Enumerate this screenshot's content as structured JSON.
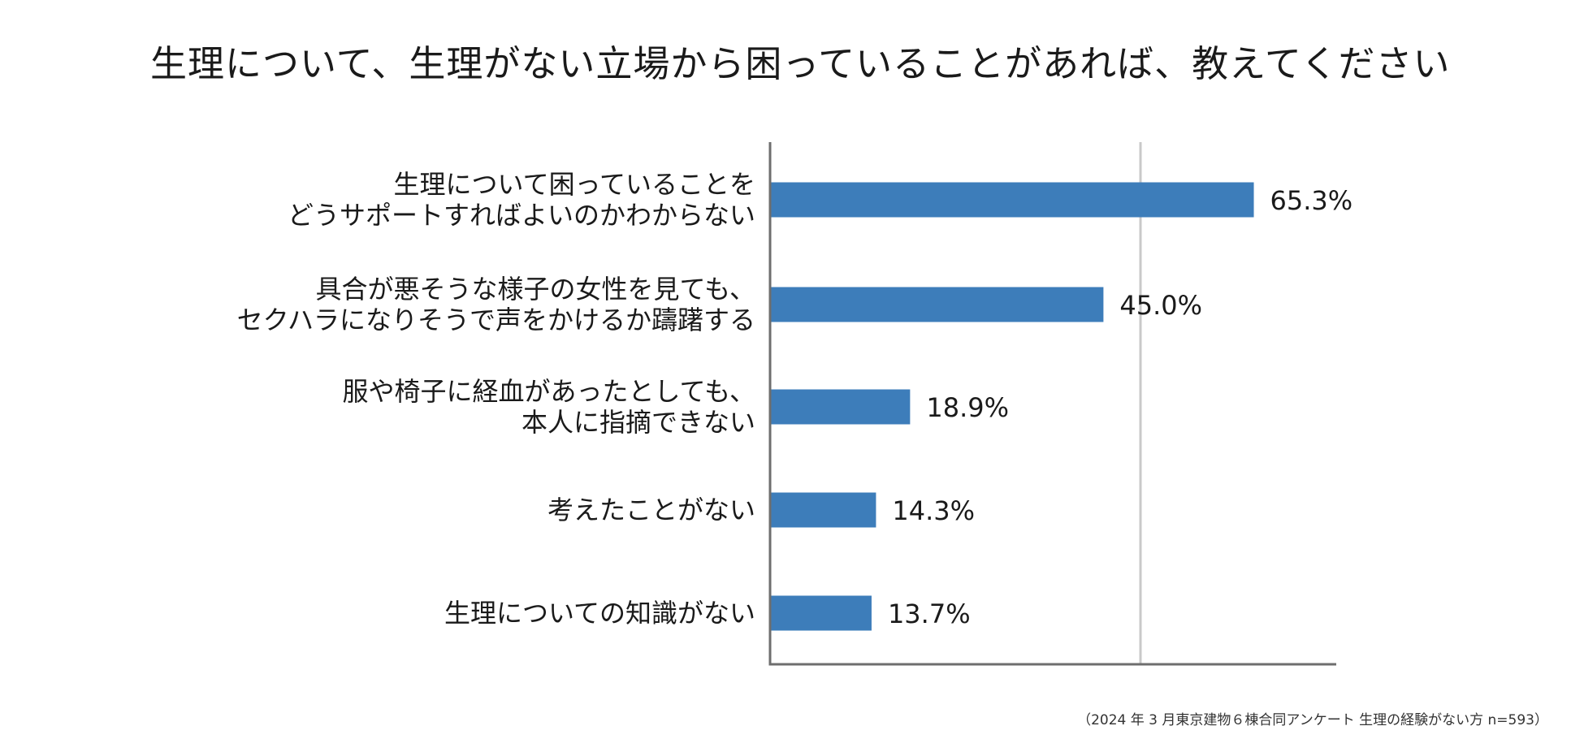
{
  "chart_data": {
    "type": "bar",
    "orientation": "horizontal",
    "title": "生理について、生理がない立場から困っていることがあれば、教えてください",
    "categories": [
      [
        "生理について困っていることを",
        "どうサポートすればよいのかわからない"
      ],
      [
        "具合が悪そうな様子の女性を見ても、",
        "セクハラになりそうで声をかけるか躊躇する"
      ],
      [
        "服や椅子に経血があったとしても、",
        "本人に指摘できない"
      ],
      [
        "考えたことがない"
      ],
      [
        "生理についての知識がない"
      ]
    ],
    "values": [
      65.3,
      45.0,
      18.9,
      14.3,
      13.7
    ],
    "value_labels": [
      "65.3%",
      "45.0%",
      "18.9%",
      "14.3%",
      "13.7%"
    ],
    "xlim": [
      0,
      76.5
    ],
    "gridlines": [
      50
    ],
    "xlabel": "",
    "ylabel": "",
    "colors": {
      "bar": "#3d7dba",
      "axis": "#6e6e6e",
      "grid": "#c9c9c9",
      "text": "#1a1a1a"
    }
  },
  "source": "（2024 年 3 月東京建物６棟合同アンケート 生理の経験がない方  n=593）"
}
